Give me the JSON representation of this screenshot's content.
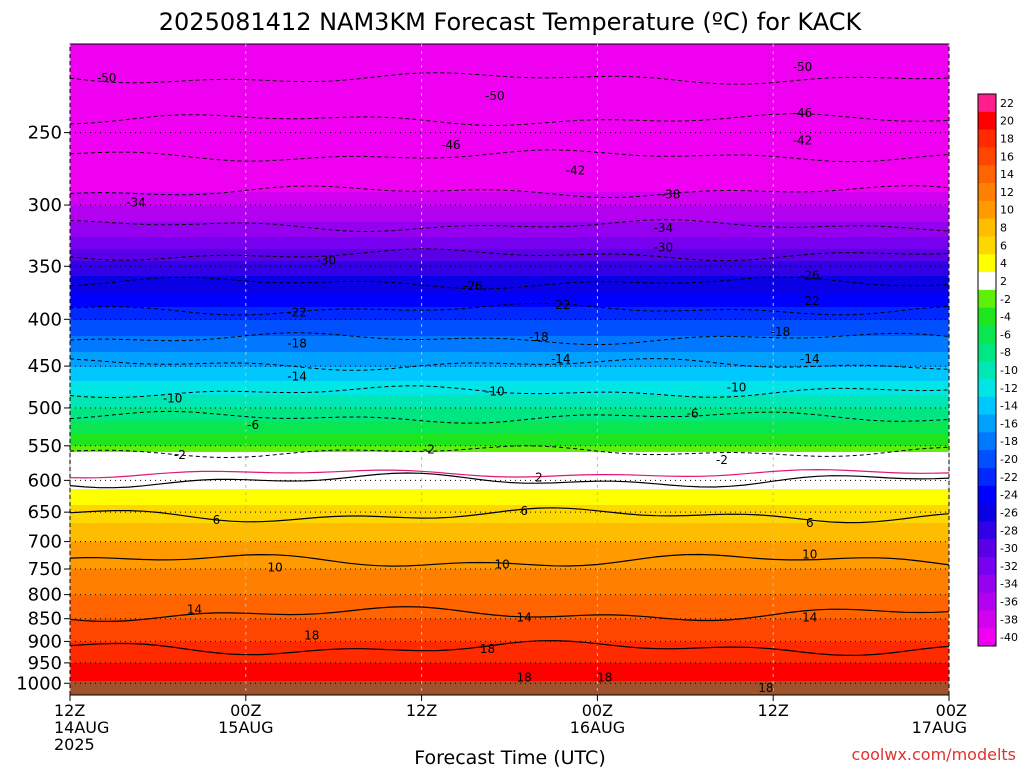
{
  "chart_data": {
    "type": "heatmap",
    "title": "2025081412 NAM3KM Forecast Temperature (ºC) for KACK",
    "xlabel": "Forecast Time (UTC)",
    "credit": "coolwx.com/modelts",
    "x_ticks": [
      {
        "hour": 0,
        "line1": "12Z",
        "line2": "14AUG",
        "line3": "2025"
      },
      {
        "hour": 12,
        "line1": "00Z",
        "line2": "15AUG",
        "line3": ""
      },
      {
        "hour": 24,
        "line1": "12Z",
        "line2": "",
        "line3": ""
      },
      {
        "hour": 36,
        "line1": "00Z",
        "line2": "16AUG",
        "line3": ""
      },
      {
        "hour": 48,
        "line1": "12Z",
        "line2": "",
        "line3": ""
      },
      {
        "hour": 60,
        "line1": "00Z",
        "line2": "17AUG",
        "line3": ""
      }
    ],
    "x_range_hours": [
      0,
      60
    ],
    "y_pressure_levels": [
      250,
      300,
      350,
      400,
      450,
      500,
      550,
      600,
      650,
      700,
      750,
      800,
      850,
      900,
      950,
      1000
    ],
    "y_range_hpa": [
      200,
      1030
    ],
    "y_scale": "log",
    "grid": true,
    "colorbar": {
      "labels": [
        "22",
        "20",
        "18",
        "16",
        "14",
        "12",
        "10",
        "8",
        "6",
        "4",
        "2",
        "-2",
        "-4",
        "-6",
        "-8",
        "-10",
        "-12",
        "-14",
        "-16",
        "-18",
        "-20",
        "-22",
        "-24",
        "-26",
        "-28",
        "-30",
        "-32",
        "-34",
        "-36",
        "-38",
        "-40"
      ],
      "colors": [
        "#ff1f8c",
        "#ff0000",
        "#ff2a00",
        "#ff4600",
        "#ff6400",
        "#ff8000",
        "#ff9a00",
        "#ffbd00",
        "#ffd700",
        "#ffff00",
        "#ffffff",
        "#5ef00a",
        "#1ee61e",
        "#0ae650",
        "#00e682",
        "#00e6b4",
        "#00e6e6",
        "#00c8ff",
        "#00a0ff",
        "#0078ff",
        "#0050ff",
        "#0028ff",
        "#0000ff",
        "#0a00e6",
        "#3200e6",
        "#5a00e6",
        "#7800f0",
        "#9600f0",
        "#b400f0",
        "#d200f0",
        "#f000f0"
      ]
    },
    "temperature_profile": [
      {
        "p": 200,
        "t": -56
      },
      {
        "p": 225,
        "t": -52
      },
      {
        "p": 250,
        "t": -47
      },
      {
        "p": 275,
        "t": -42
      },
      {
        "p": 300,
        "t": -37
      },
      {
        "p": 325,
        "t": -33
      },
      {
        "p": 350,
        "t": -28
      },
      {
        "p": 375,
        "t": -25
      },
      {
        "p": 400,
        "t": -21
      },
      {
        "p": 425,
        "t": -18
      },
      {
        "p": 450,
        "t": -15
      },
      {
        "p": 475,
        "t": -12
      },
      {
        "p": 500,
        "t": -9
      },
      {
        "p": 525,
        "t": -6
      },
      {
        "p": 550,
        "t": -3
      },
      {
        "p": 575,
        "t": 0
      },
      {
        "p": 600,
        "t": 2
      },
      {
        "p": 625,
        "t": 4
      },
      {
        "p": 650,
        "t": 6
      },
      {
        "p": 700,
        "t": 9
      },
      {
        "p": 750,
        "t": 11
      },
      {
        "p": 800,
        "t": 13
      },
      {
        "p": 850,
        "t": 15
      },
      {
        "p": 900,
        "t": 17
      },
      {
        "p": 950,
        "t": 19
      },
      {
        "p": 1000,
        "t": 21
      },
      {
        "p": 1030,
        "t": 22
      }
    ],
    "contour_labels": [
      {
        "text": "-50",
        "hour": 2.5,
        "p": 218
      },
      {
        "text": "-50",
        "hour": 29,
        "p": 228
      },
      {
        "text": "-50",
        "hour": 50,
        "p": 212
      },
      {
        "text": "-46",
        "hour": 50,
        "p": 238
      },
      {
        "text": "-46",
        "hour": 26,
        "p": 258
      },
      {
        "text": "-42",
        "hour": 34.5,
        "p": 275
      },
      {
        "text": "-42",
        "hour": 50,
        "p": 255
      },
      {
        "text": "-38",
        "hour": 41,
        "p": 292
      },
      {
        "text": "-34",
        "hour": 4.5,
        "p": 298
      },
      {
        "text": "-34",
        "hour": 40.5,
        "p": 318
      },
      {
        "text": "-30",
        "hour": 17.5,
        "p": 345
      },
      {
        "text": "-30",
        "hour": 40.5,
        "p": 334
      },
      {
        "text": "-26",
        "hour": 27.5,
        "p": 368
      },
      {
        "text": "-26",
        "hour": 50.5,
        "p": 358
      },
      {
        "text": "-22",
        "hour": 15.5,
        "p": 393
      },
      {
        "text": "-22",
        "hour": 33.5,
        "p": 386
      },
      {
        "text": "-22",
        "hour": 50.5,
        "p": 382
      },
      {
        "text": "-18",
        "hour": 15.5,
        "p": 425
      },
      {
        "text": "-18",
        "hour": 32,
        "p": 418
      },
      {
        "text": "-18",
        "hour": 48.5,
        "p": 413
      },
      {
        "text": "-14",
        "hour": 15.5,
        "p": 462
      },
      {
        "text": "-14",
        "hour": 33.5,
        "p": 442
      },
      {
        "text": "-14",
        "hour": 50.5,
        "p": 442
      },
      {
        "text": "-10",
        "hour": 7,
        "p": 488
      },
      {
        "text": "-10",
        "hour": 29,
        "p": 480
      },
      {
        "text": "-10",
        "hour": 45.5,
        "p": 475
      },
      {
        "text": "-6",
        "hour": 12.5,
        "p": 522
      },
      {
        "text": "-6",
        "hour": 42.5,
        "p": 507
      },
      {
        "text": "-2",
        "hour": 7.5,
        "p": 563
      },
      {
        "text": "-2",
        "hour": 24.5,
        "p": 555
      },
      {
        "text": "-2",
        "hour": 44.5,
        "p": 570
      },
      {
        "text": "2",
        "hour": 32,
        "p": 596
      },
      {
        "text": "6",
        "hour": 10,
        "p": 663
      },
      {
        "text": "6",
        "hour": 31,
        "p": 648
      },
      {
        "text": "6",
        "hour": 50.5,
        "p": 668
      },
      {
        "text": "10",
        "hour": 14,
        "p": 747
      },
      {
        "text": "10",
        "hour": 29.5,
        "p": 742
      },
      {
        "text": "10",
        "hour": 50.5,
        "p": 723
      },
      {
        "text": "14",
        "hour": 8.5,
        "p": 830
      },
      {
        "text": "14",
        "hour": 31,
        "p": 847
      },
      {
        "text": "14",
        "hour": 50.5,
        "p": 847
      },
      {
        "text": "18",
        "hour": 16.5,
        "p": 887
      },
      {
        "text": "18",
        "hour": 28.5,
        "p": 917
      },
      {
        "text": "18",
        "hour": 31,
        "p": 985
      },
      {
        "text": "18",
        "hour": 36.5,
        "p": 985
      },
      {
        "text": "18",
        "hour": 47.5,
        "p": 1012
      }
    ],
    "dashed_contours": [
      {
        "level": -50,
        "p": 218
      },
      {
        "level": -46,
        "p": 242
      },
      {
        "level": -42,
        "p": 265
      },
      {
        "level": -38,
        "p": 290
      },
      {
        "level": -34,
        "p": 316
      },
      {
        "level": -30,
        "p": 340
      },
      {
        "level": -26,
        "p": 365
      },
      {
        "level": -22,
        "p": 390
      },
      {
        "level": -18,
        "p": 420
      },
      {
        "level": -14,
        "p": 448
      },
      {
        "level": -10,
        "p": 480
      },
      {
        "level": -6,
        "p": 512
      },
      {
        "level": -2,
        "p": 558
      }
    ],
    "solid_contours": [
      {
        "level": 2,
        "p": 600
      },
      {
        "level": 6,
        "p": 655
      },
      {
        "level": 10,
        "p": 735
      },
      {
        "level": 14,
        "p": 840
      },
      {
        "level": 18,
        "p": 915
      }
    ]
  }
}
